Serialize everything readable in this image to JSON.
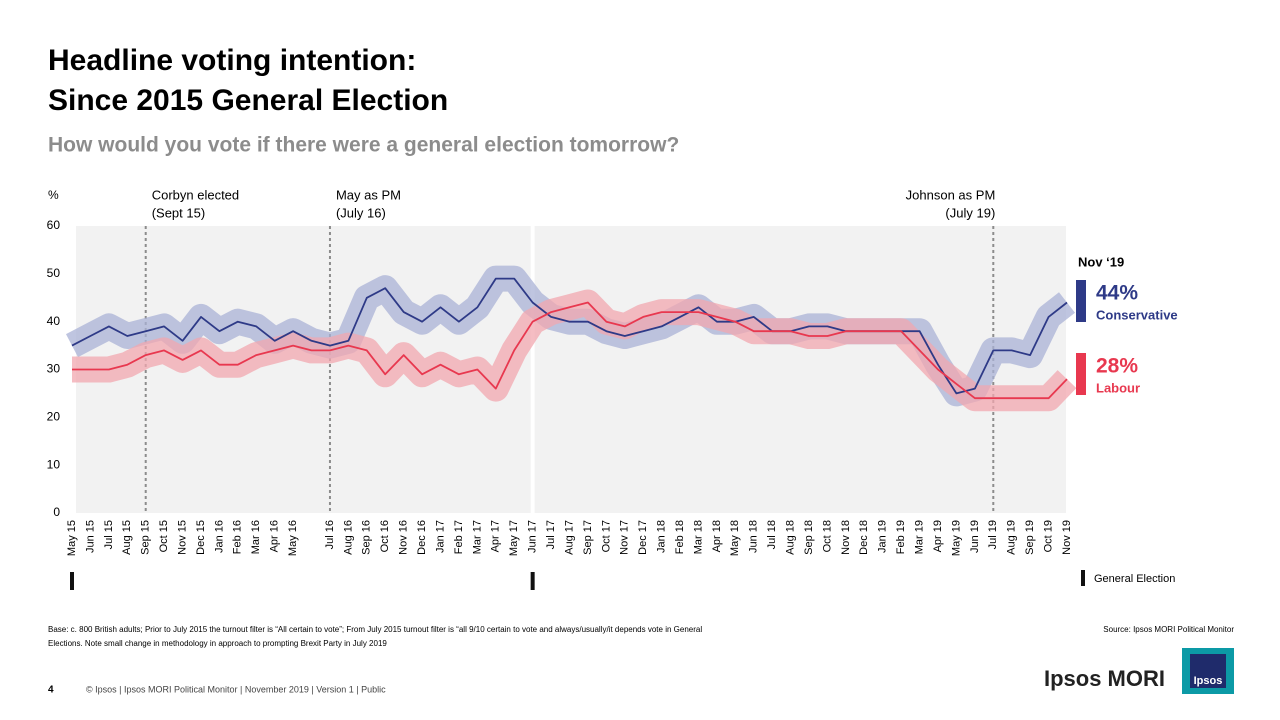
{
  "chart_data": {
    "type": "line",
    "title": [
      "Headline voting intention:",
      "Since 2015 General Election"
    ],
    "subtitle": "How would you vote if there were a general election tomorrow?",
    "y_label": "%",
    "categories": [
      "May 15",
      "Jun 15",
      "Jul 15",
      "Aug 15",
      "Sep 15",
      "Oct 15",
      "Nov 15",
      "Dec 15",
      "Jan 16",
      "Feb 16",
      "Mar 16",
      "Apr 16",
      "May 16",
      null,
      "Jul 16",
      "Aug 16",
      "Sep 16",
      "Oct 16",
      "Nov 16",
      "Dec 16",
      "Jan 17",
      "Feb 17",
      "Mar 17",
      "Apr 17",
      "May 17",
      "Jun 17",
      "Jul 17",
      "Aug 17",
      "Sep 17",
      "Oct 17",
      "Nov 17",
      "Dec 17",
      "Jan 18",
      "Feb 18",
      "Mar 18",
      "Apr 18",
      "May 18",
      "Jun 18",
      "Jul 18",
      "Aug 18",
      "Sep 18",
      "Oct 18",
      "Nov 18",
      "Dec 18",
      "Jan 19",
      "Feb 19",
      "Mar 19",
      "Apr 19",
      "May 19",
      "Jun 19",
      "Jul 19",
      "Aug 19",
      "Sep 19",
      "Oct 19",
      "Nov 19"
    ],
    "series": [
      {
        "name": "Conservative",
        "color": "#2e3a87",
        "band_color": "#a9b1d6",
        "value_label": "44%",
        "values": [
          35,
          37,
          39,
          37,
          38,
          39,
          36,
          41,
          38,
          40,
          39,
          36,
          38,
          36,
          35,
          36,
          45,
          47,
          42,
          40,
          43,
          40,
          43,
          49,
          49,
          44,
          41,
          40,
          40,
          38,
          37,
          38,
          39,
          41,
          43,
          40,
          40,
          41,
          38,
          38,
          39,
          39,
          38,
          38,
          38,
          38,
          38,
          31,
          25,
          26,
          34,
          34,
          33,
          41,
          44
        ]
      },
      {
        "name": "Labour",
        "color": "#e8384f",
        "band_color": "#f2a7af",
        "value_label": "28%",
        "values": [
          30,
          30,
          30,
          31,
          33,
          34,
          32,
          34,
          31,
          31,
          33,
          34,
          35,
          34,
          34,
          35,
          34,
          29,
          33,
          29,
          31,
          29,
          30,
          26,
          34,
          40,
          42,
          43,
          44,
          40,
          39,
          41,
          42,
          42,
          42,
          41,
          40,
          38,
          38,
          38,
          37,
          37,
          38,
          38,
          38,
          38,
          34,
          30,
          27,
          24,
          24,
          24,
          24,
          24,
          28
        ]
      }
    ],
    "latest_heading": "Nov ‘19",
    "ylim": [
      0,
      60
    ],
    "yticks": [
      0,
      10,
      20,
      30,
      40,
      50,
      60
    ],
    "annotations": [
      {
        "at": "Sep 15",
        "lines": [
          "Corbyn elected",
          "(Sept 15)"
        ]
      },
      {
        "at": "Jul 16",
        "lines": [
          "May as PM",
          "(July 16)"
        ]
      },
      {
        "at": "Jul 19",
        "lines": [
          "Johnson as PM",
          "(July 19)"
        ]
      }
    ],
    "general_elections": [
      "May 15",
      "Jun 17"
    ],
    "general_election_label": "General Election",
    "base_note": [
      "Base: c. 800 British adults; Prior to July 2015 the turnout filter is “All certain to vote”; From July 2015 turnout filter is “all  9/10 certain to vote and always/usually/it depends vote in General",
      "Elections.  Note small change in methodology in approach  to prompting Brexit Party in July 2019"
    ],
    "source": "Source: Ipsos MORI Political Monitor",
    "page_number": "4",
    "footer": "© Ipsos | Ipsos MORI  Political Monitor | November 2019 | Version 1 | Public",
    "logo": "Ipsos MORI",
    "logo_badge": "Ipsos"
  }
}
